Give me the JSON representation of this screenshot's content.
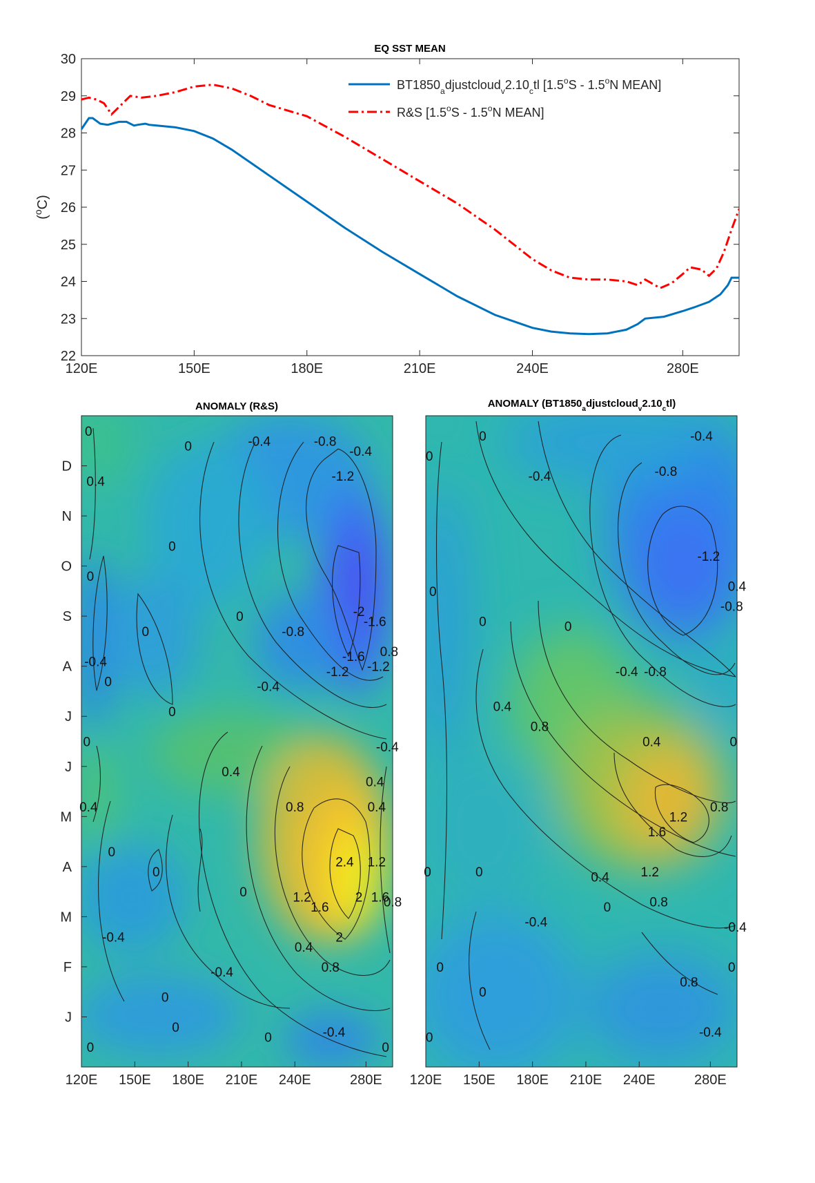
{
  "chart_data": [
    {
      "type": "line",
      "title": "EQ SST MEAN",
      "ylabel": "(°C)",
      "xlabel": "",
      "xlim": [
        120,
        295
      ],
      "ylim": [
        22,
        30
      ],
      "xticks": [
        120,
        150,
        180,
        210,
        240,
        280
      ],
      "xticklabels": [
        "120E",
        "150E",
        "180E",
        "210E",
        "240E",
        "280E"
      ],
      "yticks": [
        22,
        23,
        24,
        25,
        26,
        27,
        28,
        29,
        30
      ],
      "legend_position": "top-right",
      "series": [
        {
          "name": "BT1850_adjustcloud_v2.10_ctl [1.5°S - 1.5°N MEAN]",
          "color": "#0072BD",
          "style": "solid",
          "x": [
            120,
            122,
            123,
            125,
            127,
            130,
            132,
            134,
            135,
            137,
            138,
            140,
            145,
            150,
            155,
            160,
            165,
            170,
            175,
            180,
            190,
            200,
            210,
            220,
            230,
            240,
            245,
            250,
            255,
            260,
            265,
            268,
            270,
            275,
            280,
            283,
            287,
            290,
            292,
            293,
            295
          ],
          "y": [
            28.1,
            28.4,
            28.4,
            28.25,
            28.22,
            28.3,
            28.3,
            28.2,
            28.22,
            28.25,
            28.22,
            28.2,
            28.15,
            28.05,
            27.85,
            27.55,
            27.2,
            26.85,
            26.5,
            26.15,
            25.45,
            24.8,
            24.2,
            23.6,
            23.1,
            22.75,
            22.65,
            22.6,
            22.58,
            22.6,
            22.7,
            22.85,
            23.0,
            23.05,
            23.2,
            23.3,
            23.45,
            23.65,
            23.9,
            24.1,
            24.1
          ]
        },
        {
          "name": "R&S [1.5°S - 1.5°N MEAN]",
          "color": "#FF0000",
          "style": "dashdot",
          "x": [
            120,
            122,
            124,
            126,
            128,
            130,
            133,
            136,
            140,
            145,
            150,
            155,
            160,
            165,
            170,
            180,
            190,
            200,
            210,
            220,
            230,
            240,
            245,
            250,
            255,
            260,
            265,
            268,
            270,
            274,
            277,
            280,
            282,
            285,
            287,
            289,
            291,
            293,
            295
          ],
          "y": [
            28.9,
            28.95,
            28.9,
            28.8,
            28.5,
            28.7,
            29.0,
            28.95,
            29.0,
            29.1,
            29.25,
            29.3,
            29.2,
            29.0,
            28.75,
            28.45,
            27.9,
            27.3,
            26.7,
            26.1,
            25.4,
            24.6,
            24.3,
            24.1,
            24.05,
            24.05,
            24.0,
            23.9,
            24.05,
            23.82,
            23.95,
            24.2,
            24.38,
            24.32,
            24.15,
            24.35,
            24.8,
            25.4,
            25.95
          ]
        }
      ]
    },
    {
      "type": "heatmap",
      "title": "ANOMALY (R&S)",
      "xlim": [
        120,
        295
      ],
      "xticks": [
        120,
        150,
        180,
        210,
        240,
        280
      ],
      "xticklabels": [
        "120E",
        "150E",
        "180E",
        "210E",
        "240E",
        "280E"
      ],
      "yticklabels": [
        "J",
        "F",
        "M",
        "A",
        "M",
        "J",
        "J",
        "A",
        "S",
        "O",
        "N",
        "D"
      ],
      "colormap": "parula",
      "clim": [
        -2.6,
        3.0
      ],
      "contour_labels": [
        {
          "text": "0",
          "lon": 124,
          "mon": 11.7
        },
        {
          "text": "0",
          "lon": 180,
          "mon": 11.4
        },
        {
          "text": "-0.4",
          "lon": 220,
          "mon": 11.5
        },
        {
          "text": "-0.8",
          "lon": 257,
          "mon": 11.5
        },
        {
          "text": "-0.4",
          "lon": 277,
          "mon": 11.3
        },
        {
          "text": "0.4",
          "lon": 128,
          "mon": 10.7
        },
        {
          "text": "-1.2",
          "lon": 267,
          "mon": 10.8
        },
        {
          "text": "0",
          "lon": 171,
          "mon": 9.4
        },
        {
          "text": "0",
          "lon": 125,
          "mon": 8.8
        },
        {
          "text": "-0.4",
          "lon": 128,
          "mon": 7.1
        },
        {
          "text": "0",
          "lon": 135,
          "mon": 6.7
        },
        {
          "text": "0",
          "lon": 156,
          "mon": 7.7
        },
        {
          "text": "0",
          "lon": 209,
          "mon": 8.0
        },
        {
          "text": "-0.8",
          "lon": 239,
          "mon": 7.7
        },
        {
          "text": "-0.4",
          "lon": 225,
          "mon": 6.6
        },
        {
          "text": "0",
          "lon": 171,
          "mon": 6.1
        },
        {
          "text": "-2",
          "lon": 276,
          "mon": 8.1
        },
        {
          "text": "-1.6",
          "lon": 285,
          "mon": 7.9
        },
        {
          "text": "-1.6",
          "lon": 273,
          "mon": 7.2
        },
        {
          "text": "-1.2",
          "lon": 264,
          "mon": 6.9
        },
        {
          "text": "-1.2",
          "lon": 287,
          "mon": 7.0
        },
        {
          "text": "0.8",
          "lon": 293,
          "mon": 7.3
        },
        {
          "text": "-0.4",
          "lon": 292,
          "mon": 5.4
        },
        {
          "text": "0",
          "lon": 123,
          "mon": 5.5
        },
        {
          "text": "0.4",
          "lon": 124,
          "mon": 4.2
        },
        {
          "text": "0.4",
          "lon": 204,
          "mon": 4.9
        },
        {
          "text": "0.8",
          "lon": 240,
          "mon": 4.2
        },
        {
          "text": "0.4",
          "lon": 285,
          "mon": 4.7
        },
        {
          "text": "0.4",
          "lon": 286,
          "mon": 4.2
        },
        {
          "text": "0",
          "lon": 137,
          "mon": 3.3
        },
        {
          "text": "0",
          "lon": 162,
          "mon": 2.9
        },
        {
          "text": "2.4",
          "lon": 268,
          "mon": 3.1
        },
        {
          "text": "1.2",
          "lon": 286,
          "mon": 3.1
        },
        {
          "text": "1.2",
          "lon": 244,
          "mon": 2.4
        },
        {
          "text": "1.6",
          "lon": 254,
          "mon": 2.2
        },
        {
          "text": "2",
          "lon": 276,
          "mon": 2.4
        },
        {
          "text": "1.6",
          "lon": 288,
          "mon": 2.4
        },
        {
          "text": "0.8",
          "lon": 295,
          "mon": 2.3
        },
        {
          "text": "0",
          "lon": 211,
          "mon": 2.5
        },
        {
          "text": "2",
          "lon": 265,
          "mon": 1.6
        },
        {
          "text": "0.4",
          "lon": 245,
          "mon": 1.4
        },
        {
          "text": "-0.4",
          "lon": 138,
          "mon": 1.6
        },
        {
          "text": "0.8",
          "lon": 260,
          "mon": 1.0
        },
        {
          "text": "-0.4",
          "lon": 199,
          "mon": 0.9
        },
        {
          "text": "0",
          "lon": 167,
          "mon": 0.4
        },
        {
          "text": "0",
          "lon": 173,
          "mon": -0.2
        },
        {
          "text": "0",
          "lon": 125,
          "mon": -0.6
        },
        {
          "text": "0",
          "lon": 225,
          "mon": -0.4
        },
        {
          "text": "-0.4",
          "lon": 262,
          "mon": -0.3
        },
        {
          "text": "0",
          "lon": 291,
          "mon": -0.6
        }
      ]
    },
    {
      "type": "heatmap",
      "title": "ANOMALY (BT1850_adjustcloud_v2.10_ctl)",
      "xlim": [
        120,
        295
      ],
      "xticks": [
        120,
        150,
        180,
        210,
        240,
        280
      ],
      "xticklabels": [
        "120E",
        "150E",
        "180E",
        "210E",
        "240E",
        "280E"
      ],
      "yticklabels": [],
      "colormap": "parula",
      "clim": [
        -2.6,
        3.0
      ],
      "contour_labels": [
        {
          "text": "0",
          "lon": 122,
          "mon": 11.2
        },
        {
          "text": "0",
          "lon": 152,
          "mon": 11.6
        },
        {
          "text": "-0.4",
          "lon": 184,
          "mon": 10.8
        },
        {
          "text": "-0.4",
          "lon": 275,
          "mon": 11.6
        },
        {
          "text": "-0.8",
          "lon": 255,
          "mon": 10.9
        },
        {
          "text": "-1.2",
          "lon": 279,
          "mon": 9.2
        },
        {
          "text": "0",
          "lon": 124,
          "mon": 8.5
        },
        {
          "text": "0",
          "lon": 152,
          "mon": 7.9
        },
        {
          "text": "0",
          "lon": 200,
          "mon": 7.8
        },
        {
          "text": "-0.8",
          "lon": 292,
          "mon": 8.2
        },
        {
          "text": "0.4",
          "lon": 295,
          "mon": 8.6
        },
        {
          "text": "-0.4",
          "lon": 233,
          "mon": 6.9
        },
        {
          "text": "-0.8",
          "lon": 249,
          "mon": 6.9
        },
        {
          "text": "0.4",
          "lon": 163,
          "mon": 6.2
        },
        {
          "text": "0.8",
          "lon": 184,
          "mon": 5.8
        },
        {
          "text": "0.4",
          "lon": 247,
          "mon": 5.5
        },
        {
          "text": "0",
          "lon": 293,
          "mon": 5.5
        },
        {
          "text": "0.8",
          "lon": 285,
          "mon": 4.2
        },
        {
          "text": "1.2",
          "lon": 262,
          "mon": 4.0
        },
        {
          "text": "1.6",
          "lon": 250,
          "mon": 3.7
        },
        {
          "text": "0",
          "lon": 121,
          "mon": 2.9
        },
        {
          "text": "0",
          "lon": 150,
          "mon": 2.9
        },
        {
          "text": "1.2",
          "lon": 246,
          "mon": 2.9
        },
        {
          "text": "0.4",
          "lon": 218,
          "mon": 2.8
        },
        {
          "text": "0.8",
          "lon": 251,
          "mon": 2.3
        },
        {
          "text": "0",
          "lon": 222,
          "mon": 2.2
        },
        {
          "text": "-0.4",
          "lon": 182,
          "mon": 1.9
        },
        {
          "text": "0.8",
          "lon": 268,
          "mon": 0.7
        },
        {
          "text": "-0.4",
          "lon": 294,
          "mon": 1.8
        },
        {
          "text": "0",
          "lon": 292,
          "mon": 1.0
        },
        {
          "text": "0",
          "lon": 128,
          "mon": 1.0
        },
        {
          "text": "0",
          "lon": 152,
          "mon": 0.5
        },
        {
          "text": "0",
          "lon": 122,
          "mon": -0.4
        },
        {
          "text": "-0.4",
          "lon": 280,
          "mon": -0.3
        }
      ]
    }
  ]
}
